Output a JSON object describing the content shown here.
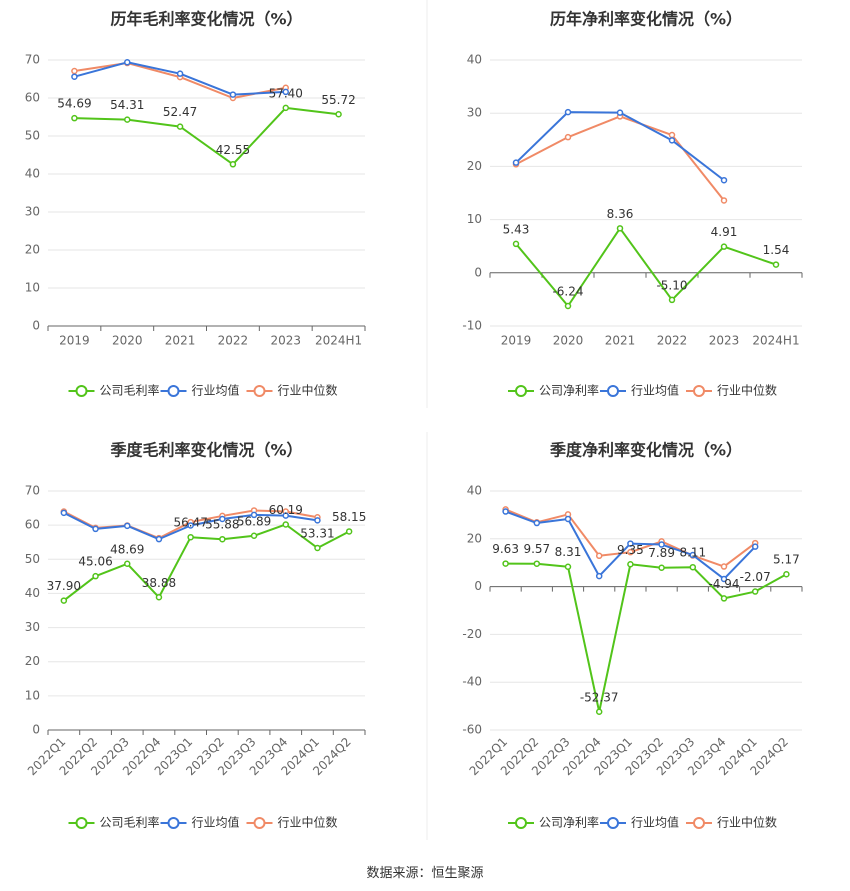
{
  "source_text": "数据来源：恒生聚源",
  "colors": {
    "company": "#52c41a",
    "industry_avg": "#3a75d9",
    "industry_median": "#f08a66"
  },
  "chart_data": [
    {
      "type": "line",
      "title": "历年毛利率变化情况（%）",
      "categories": [
        "2019",
        "2020",
        "2021",
        "2022",
        "2023",
        "2024H1"
      ],
      "ylim": [
        0,
        70
      ],
      "yticks": [
        0,
        10,
        20,
        30,
        40,
        50,
        60,
        70
      ],
      "rotate_labels": false,
      "series": [
        {
          "name": "公司毛利率",
          "values": [
            54.69,
            54.31,
            52.47,
            42.55,
            57.4,
            55.72
          ],
          "labels": [
            "54.69",
            "54.31",
            "52.47",
            "42.55",
            "57.40",
            "55.72"
          ]
        },
        {
          "name": "行业均值",
          "values": [
            65.6,
            69.4,
            66.4,
            60.9,
            61.6,
            null
          ]
        },
        {
          "name": "行业中位数",
          "values": [
            67.1,
            69.2,
            65.5,
            60.0,
            62.7,
            null
          ]
        }
      ]
    },
    {
      "type": "line",
      "title": "历年净利率变化情况（%）",
      "categories": [
        "2019",
        "2020",
        "2021",
        "2022",
        "2023",
        "2024H1"
      ],
      "ylim": [
        -10,
        40
      ],
      "yticks": [
        -10,
        0,
        10,
        20,
        30,
        40
      ],
      "rotate_labels": false,
      "series": [
        {
          "name": "公司净利率",
          "values": [
            5.43,
            -6.24,
            8.36,
            -5.1,
            4.91,
            1.54
          ],
          "labels": [
            "5.43",
            "-6.24",
            "8.36",
            "-5.10",
            "4.91",
            "1.54"
          ]
        },
        {
          "name": "行业均值",
          "values": [
            20.7,
            30.2,
            30.1,
            24.9,
            17.4,
            null
          ]
        },
        {
          "name": "行业中位数",
          "values": [
            20.4,
            25.5,
            29.4,
            25.9,
            13.6,
            null
          ]
        }
      ]
    },
    {
      "type": "line",
      "title": "季度毛利率变化情况（%）",
      "categories": [
        "2022Q1",
        "2022Q2",
        "2022Q3",
        "2022Q4",
        "2023Q1",
        "2023Q2",
        "2023Q3",
        "2023Q4",
        "2024Q1",
        "2024Q2"
      ],
      "ylim": [
        0,
        70
      ],
      "yticks": [
        0,
        10,
        20,
        30,
        40,
        50,
        60,
        70
      ],
      "rotate_labels": true,
      "series": [
        {
          "name": "公司毛利率",
          "values": [
            37.9,
            45.06,
            48.69,
            38.88,
            56.47,
            55.88,
            56.89,
            60.19,
            53.31,
            58.15
          ],
          "labels": [
            "37.90",
            "45.06",
            "48.69",
            "38.88",
            "56.47",
            "55.88",
            "56.89",
            "60.19",
            "53.31",
            "58.15"
          ]
        },
        {
          "name": "行业均值",
          "values": [
            63.6,
            58.9,
            59.8,
            55.9,
            59.9,
            61.8,
            63.0,
            62.8,
            61.4,
            null
          ]
        },
        {
          "name": "行业中位数",
          "values": [
            64.0,
            59.2,
            59.9,
            56.2,
            60.9,
            62.7,
            64.3,
            64.0,
            62.3,
            null
          ]
        }
      ]
    },
    {
      "type": "line",
      "title": "季度净利率变化情况（%）",
      "categories": [
        "2022Q1",
        "2022Q2",
        "2022Q3",
        "2022Q4",
        "2023Q1",
        "2023Q2",
        "2023Q3",
        "2023Q4",
        "2024Q1",
        "2024Q2"
      ],
      "ylim": [
        -60,
        40
      ],
      "yticks": [
        -60,
        -40,
        -20,
        0,
        20,
        40
      ],
      "rotate_labels": true,
      "series": [
        {
          "name": "公司净利率",
          "values": [
            9.63,
            9.57,
            8.31,
            -52.37,
            9.35,
            7.89,
            8.11,
            -4.94,
            -2.07,
            5.17
          ],
          "labels": [
            "9.63",
            "9.57",
            "8.31",
            "-52.37",
            "9.35",
            "7.89",
            "8.11",
            "-4.94",
            "-2.07",
            "5.17"
          ]
        },
        {
          "name": "行业均值",
          "values": [
            31.4,
            26.6,
            28.3,
            4.4,
            18.0,
            17.6,
            13.2,
            3.2,
            16.7,
            null
          ]
        },
        {
          "name": "行业中位数",
          "values": [
            32.3,
            26.9,
            30.2,
            12.9,
            14.4,
            18.9,
            13.0,
            8.4,
            18.2,
            null
          ]
        }
      ]
    }
  ]
}
